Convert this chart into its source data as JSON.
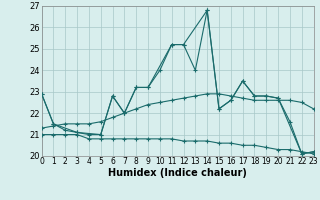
{
  "xlabel": "Humidex (Indice chaleur)",
  "xlim": [
    0,
    23
  ],
  "ylim": [
    20,
    27
  ],
  "yticks": [
    20,
    21,
    22,
    23,
    24,
    25,
    26,
    27
  ],
  "xticks": [
    0,
    1,
    2,
    3,
    4,
    5,
    6,
    7,
    8,
    9,
    10,
    11,
    12,
    13,
    14,
    15,
    16,
    17,
    18,
    19,
    20,
    21,
    22,
    23
  ],
  "bg_color": "#d8eeed",
  "grid_color": "#a8c8c8",
  "line_color": "#1a6b6b",
  "series": [
    {
      "x": [
        0,
        1,
        2,
        3,
        4,
        5,
        6,
        7,
        8,
        9,
        10,
        11,
        12,
        13,
        14,
        15,
        16,
        17,
        18,
        19,
        20,
        21,
        22,
        23
      ],
      "y": [
        22.9,
        21.5,
        21.2,
        21.1,
        21.0,
        21.0,
        22.8,
        22.0,
        23.2,
        23.2,
        24.0,
        25.2,
        25.2,
        24.0,
        26.8,
        22.2,
        22.6,
        23.5,
        22.8,
        22.8,
        22.7,
        21.6,
        20.1,
        20.2
      ]
    },
    {
      "x": [
        0,
        1,
        2,
        3,
        4,
        5,
        6,
        7,
        8,
        9,
        10,
        11,
        12,
        13,
        14,
        15,
        16,
        17,
        18,
        19,
        20,
        21,
        22,
        23
      ],
      "y": [
        21.3,
        21.4,
        21.5,
        21.5,
        21.5,
        21.6,
        21.8,
        22.0,
        22.2,
        22.4,
        22.5,
        22.6,
        22.7,
        22.8,
        22.9,
        22.9,
        22.8,
        22.7,
        22.6,
        22.6,
        22.6,
        22.6,
        22.5,
        22.2
      ]
    },
    {
      "x": [
        0,
        1,
        2,
        3,
        4,
        5,
        6,
        7,
        8,
        9,
        10,
        11,
        12,
        13,
        14,
        15,
        16,
        17,
        18,
        19,
        20,
        21,
        22,
        23
      ],
      "y": [
        21.0,
        21.0,
        21.0,
        21.0,
        20.8,
        20.8,
        20.8,
        20.8,
        20.8,
        20.8,
        20.8,
        20.8,
        20.7,
        20.7,
        20.7,
        20.6,
        20.6,
        20.5,
        20.5,
        20.4,
        20.3,
        20.3,
        20.2,
        20.1
      ]
    },
    {
      "x": [
        0,
        1,
        3,
        5,
        6,
        7,
        8,
        9,
        11,
        12,
        14,
        15,
        16,
        17,
        18,
        19,
        20,
        22,
        23
      ],
      "y": [
        22.9,
        21.5,
        21.1,
        21.0,
        22.8,
        22.0,
        23.2,
        23.2,
        25.2,
        25.2,
        26.8,
        22.2,
        22.6,
        23.5,
        22.8,
        22.8,
        22.7,
        20.1,
        20.2
      ]
    }
  ]
}
